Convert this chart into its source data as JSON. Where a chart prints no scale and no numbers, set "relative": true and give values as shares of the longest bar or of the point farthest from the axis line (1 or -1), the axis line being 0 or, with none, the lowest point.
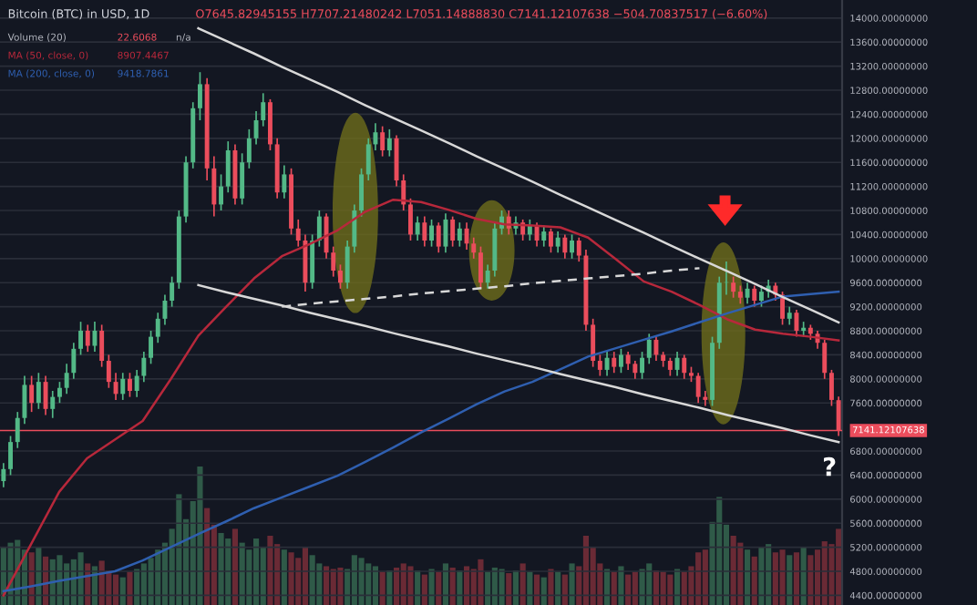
{
  "chart_data": [
    {
      "type": "candlestick",
      "title": "Bitcoin (BTC) in USD, 1D",
      "subtitle": "O7645.82945155 H7707.21480242 L7051.14888830 C7141.12107638 −504.70837517 (−6.60%)",
      "annotations": [
        "Volume (20)",
        "22.6068",
        "n/a",
        "8907.4467",
        "9418.7861",
        "?"
      ],
      "categories": [
        null,
        null,
        null,
        null,
        null,
        null,
        null,
        null,
        null,
        null,
        null,
        null,
        null,
        null,
        null,
        null,
        null,
        null,
        null,
        null,
        null,
        null,
        null,
        null,
        null,
        null,
        null,
        null,
        null,
        null,
        null,
        null,
        null,
        null,
        null,
        null,
        null,
        null,
        null,
        null,
        null,
        null,
        null,
        null,
        null,
        null,
        null,
        null,
        null,
        null,
        null,
        null,
        null,
        null,
        null,
        null,
        null,
        null,
        null,
        null,
        null,
        null,
        null,
        null,
        null,
        null,
        null,
        null,
        null,
        null,
        null,
        null,
        null,
        null,
        null,
        null,
        null,
        null,
        null,
        null,
        null,
        null,
        null,
        null,
        null,
        null,
        null,
        null,
        null,
        null,
        null,
        null,
        null,
        null,
        null,
        null,
        null,
        null,
        null,
        null,
        null,
        null,
        null,
        null,
        null,
        null,
        null,
        null,
        null,
        null,
        null,
        null,
        null,
        null,
        null,
        null,
        null,
        null,
        null,
        null
      ],
      "ohlc": [
        [
          6300,
          6600,
          6200,
          6500
        ],
        [
          6500,
          7050,
          6400,
          6950
        ],
        [
          6950,
          7450,
          6850,
          7350
        ],
        [
          7350,
          8050,
          7250,
          7900
        ],
        [
          7900,
          8050,
          7450,
          7600
        ],
        [
          7600,
          8100,
          7500,
          7950
        ],
        [
          7950,
          8050,
          7400,
          7500
        ],
        [
          7500,
          7800,
          7350,
          7700
        ],
        [
          7700,
          7950,
          7600,
          7850
        ],
        [
          7850,
          8250,
          7750,
          8100
        ],
        [
          8100,
          8600,
          8000,
          8500
        ],
        [
          8500,
          8950,
          8400,
          8800
        ],
        [
          8800,
          8900,
          8450,
          8550
        ],
        [
          8550,
          8950,
          8450,
          8800
        ],
        [
          8800,
          8900,
          8200,
          8300
        ],
        [
          8300,
          8400,
          7850,
          7950
        ],
        [
          7950,
          8100,
          7650,
          7750
        ],
        [
          7750,
          8100,
          7650,
          8000
        ],
        [
          8000,
          8100,
          7700,
          7800
        ],
        [
          7800,
          8150,
          7700,
          8050
        ],
        [
          8050,
          8450,
          7950,
          8350
        ],
        [
          8350,
          8800,
          8250,
          8700
        ],
        [
          8700,
          9100,
          8600,
          9000
        ],
        [
          9000,
          9400,
          8900,
          9300
        ],
        [
          9300,
          9700,
          9200,
          9600
        ],
        [
          9600,
          10800,
          9500,
          10700
        ],
        [
          10700,
          11700,
          10600,
          11600
        ],
        [
          11600,
          12600,
          11500,
          12500
        ],
        [
          12500,
          13100,
          12300,
          12900
        ],
        [
          12900,
          13000,
          11300,
          11500
        ],
        [
          11500,
          11700,
          10700,
          10900
        ],
        [
          10900,
          11400,
          10800,
          11200
        ],
        [
          11200,
          11950,
          11100,
          11800
        ],
        [
          11800,
          11900,
          10900,
          11000
        ],
        [
          11000,
          11750,
          10900,
          11600
        ],
        [
          11600,
          12150,
          11500,
          12000
        ],
        [
          12000,
          12450,
          11900,
          12300
        ],
        [
          12300,
          12750,
          12200,
          12600
        ],
        [
          12600,
          12650,
          11800,
          11900
        ],
        [
          11900,
          12000,
          11000,
          11100
        ],
        [
          11100,
          11550,
          11000,
          11400
        ],
        [
          11400,
          11500,
          10400,
          10500
        ],
        [
          10500,
          10650,
          10200,
          10300
        ],
        [
          10300,
          10400,
          9450,
          9600
        ],
        [
          9600,
          10400,
          9500,
          10300
        ],
        [
          10300,
          10800,
          10200,
          10700
        ],
        [
          10700,
          10750,
          10000,
          10100
        ],
        [
          10100,
          10200,
          9700,
          9800
        ],
        [
          9800,
          9900,
          9500,
          9600
        ],
        [
          9600,
          10300,
          9500,
          10200
        ],
        [
          10200,
          10900,
          10100,
          10800
        ],
        [
          10800,
          11500,
          10700,
          11400
        ],
        [
          11400,
          12000,
          11300,
          11900
        ],
        [
          11900,
          12250,
          11800,
          12100
        ],
        [
          12100,
          12200,
          11700,
          11800
        ],
        [
          11800,
          12150,
          11700,
          12000
        ],
        [
          12000,
          12050,
          11200,
          11300
        ],
        [
          11300,
          11400,
          10800,
          10900
        ],
        [
          10900,
          11000,
          10300,
          10400
        ],
        [
          10400,
          10700,
          10300,
          10600
        ],
        [
          10600,
          10700,
          10200,
          10300
        ],
        [
          10300,
          10650,
          10200,
          10550
        ],
        [
          10550,
          10600,
          10100,
          10200
        ],
        [
          10200,
          10750,
          10100,
          10650
        ],
        [
          10650,
          10700,
          10200,
          10300
        ],
        [
          10300,
          10600,
          10200,
          10500
        ],
        [
          10500,
          10600,
          10150,
          10250
        ],
        [
          10250,
          10350,
          10000,
          10100
        ],
        [
          10100,
          10200,
          9500,
          9600
        ],
        [
          9600,
          9900,
          9500,
          9800
        ],
        [
          9800,
          10600,
          9700,
          10500
        ],
        [
          10500,
          10800,
          10400,
          10700
        ],
        [
          10700,
          10800,
          10400,
          10500
        ],
        [
          10500,
          10700,
          10400,
          10600
        ],
        [
          10600,
          10650,
          10300,
          10400
        ],
        [
          10400,
          10650,
          10300,
          10550
        ],
        [
          10550,
          10600,
          10200,
          10300
        ],
        [
          10300,
          10550,
          10200,
          10450
        ],
        [
          10450,
          10500,
          10100,
          10200
        ],
        [
          10200,
          10450,
          10100,
          10350
        ],
        [
          10350,
          10400,
          10000,
          10100
        ],
        [
          10100,
          10400,
          10000,
          10300
        ],
        [
          10300,
          10350,
          9950,
          10050
        ],
        [
          10050,
          10150,
          8800,
          8900
        ],
        [
          8900,
          9000,
          8200,
          8300
        ],
        [
          8300,
          8400,
          8050,
          8150
        ],
        [
          8150,
          8450,
          8050,
          8350
        ],
        [
          8350,
          8450,
          8100,
          8200
        ],
        [
          8200,
          8500,
          8100,
          8400
        ],
        [
          8400,
          8450,
          8150,
          8250
        ],
        [
          8250,
          8300,
          8000,
          8100
        ],
        [
          8100,
          8450,
          8000,
          8350
        ],
        [
          8350,
          8750,
          8250,
          8650
        ],
        [
          8650,
          8700,
          8300,
          8400
        ],
        [
          8400,
          8450,
          8200,
          8300
        ],
        [
          8300,
          8350,
          8050,
          8150
        ],
        [
          8150,
          8450,
          8050,
          8350
        ],
        [
          8350,
          8400,
          8000,
          8100
        ],
        [
          8100,
          8200,
          7950,
          8050
        ],
        [
          8050,
          8100,
          7600,
          7700
        ],
        [
          7700,
          7800,
          7550,
          7650
        ],
        [
          7650,
          8700,
          7550,
          8600
        ],
        [
          8600,
          9700,
          8500,
          9600
        ],
        [
          9600,
          9950,
          9400,
          9600
        ],
        [
          9600,
          9700,
          9350,
          9450
        ],
        [
          9450,
          9550,
          9250,
          9350
        ],
        [
          9350,
          9600,
          9250,
          9500
        ],
        [
          9500,
          9550,
          9200,
          9300
        ],
        [
          9300,
          9550,
          9200,
          9450
        ],
        [
          9450,
          9650,
          9350,
          9550
        ],
        [
          9550,
          9600,
          9300,
          9400
        ],
        [
          9400,
          9450,
          8900,
          9000
        ],
        [
          9000,
          9200,
          8900,
          9100
        ],
        [
          9100,
          9150,
          8700,
          8800
        ],
        [
          8800,
          8950,
          8700,
          8850
        ],
        [
          8850,
          8900,
          8650,
          8750
        ],
        [
          8750,
          8800,
          8500,
          8600
        ],
        [
          8600,
          8650,
          8000,
          8100
        ],
        [
          8100,
          8150,
          7550,
          7650
        ],
        [
          7645.82945155,
          7707.21480242,
          7051.1488883,
          7141.12107638
        ]
      ],
      "colors": [
        "#53b987",
        "#53b987",
        "#53b987",
        "#53b987",
        "#eb4d5c",
        "#53b987",
        "#eb4d5c",
        "#53b987",
        "#53b987",
        "#53b987",
        "#53b987",
        "#53b987",
        "#eb4d5c",
        "#53b987",
        "#eb4d5c",
        "#eb4d5c",
        "#eb4d5c",
        "#53b987",
        "#eb4d5c",
        "#53b987",
        "#53b987",
        "#53b987",
        "#53b987",
        "#53b987",
        "#53b987",
        "#53b987",
        "#53b987",
        "#53b987",
        "#53b987",
        "#eb4d5c",
        "#eb4d5c",
        "#53b987",
        "#53b987",
        "#eb4d5c",
        "#53b987",
        "#53b987",
        "#53b987",
        "#53b987",
        "#eb4d5c",
        "#eb4d5c",
        "#53b987",
        "#eb4d5c",
        "#eb4d5c",
        "#eb4d5c",
        "#53b987",
        "#53b987",
        "#eb4d5c",
        "#eb4d5c",
        "#eb4d5c",
        "#53b987",
        "#53b987",
        "#53b987",
        "#53b987",
        "#53b987",
        "#eb4d5c",
        "#53b987",
        "#eb4d5c",
        "#eb4d5c",
        "#eb4d5c",
        "#53b987",
        "#eb4d5c",
        "#53b987",
        "#eb4d5c",
        "#53b987",
        "#eb4d5c",
        "#53b987",
        "#eb4d5c",
        "#eb4d5c",
        "#eb4d5c",
        "#53b987",
        "#53b987",
        "#53b987",
        "#eb4d5c",
        "#53b987",
        "#eb4d5c",
        "#53b987",
        "#eb4d5c",
        "#53b987",
        "#eb4d5c",
        "#53b987",
        "#eb4d5c",
        "#53b987",
        "#eb4d5c",
        "#eb4d5c",
        "#eb4d5c",
        "#eb4d5c",
        "#53b987",
        "#eb4d5c",
        "#53b987",
        "#eb4d5c",
        "#eb4d5c",
        "#53b987",
        "#53b987",
        "#eb4d5c",
        "#eb4d5c",
        "#eb4d5c",
        "#53b987",
        "#eb4d5c",
        "#eb4d5c",
        "#eb4d5c",
        "#eb4d5c",
        "#53b987",
        "#53b987",
        "#53b987",
        "#eb4d5c",
        "#eb4d5c",
        "#53b987",
        "#eb4d5c",
        "#53b987",
        "#53b987",
        "#eb4d5c",
        "#eb4d5c",
        "#53b987",
        "#eb4d5c",
        "#53b987",
        "#eb4d5c",
        "#eb4d5c",
        "#eb4d5c",
        "#eb4d5c",
        "#eb4d5c"
      ],
      "ref_lines": [
        {
          "axis": "y",
          "value": 7141.12107638,
          "label": "7141.12107638",
          "color": "#eb4d5c"
        }
      ],
      "ylim": [
        4240,
        14300
      ],
      "yticks": [
        {
          "value": 4400,
          "label": "4400.00000000"
        },
        {
          "value": 4800,
          "label": "4800.00000000"
        },
        {
          "value": 5200,
          "label": "5200.00000000"
        },
        {
          "value": 5600,
          "label": "5600.00000000"
        },
        {
          "value": 6000,
          "label": "6000.00000000"
        },
        {
          "value": 6400,
          "label": "6400.00000000"
        },
        {
          "value": 6800,
          "label": "6800.00000000"
        },
        {
          "value": 7600,
          "label": "7600.00000000"
        },
        {
          "value": 8000,
          "label": "8000.00000000"
        },
        {
          "value": 8400,
          "label": "8400.00000000"
        },
        {
          "value": 8800,
          "label": "8800.00000000"
        },
        {
          "value": 9200,
          "label": "9200.00000000"
        },
        {
          "value": 9600,
          "label": "9600.00000000"
        },
        {
          "value": 10000,
          "label": "10000.00000000"
        },
        {
          "value": 10400,
          "label": "10400.00000000"
        },
        {
          "value": 10800,
          "label": "10800.00000000"
        },
        {
          "value": 11200,
          "label": "11200.00000000"
        },
        {
          "value": 11600,
          "label": "11600.00000000"
        },
        {
          "value": 12000,
          "label": "12000.00000000"
        },
        {
          "value": 12400,
          "label": "12400.00000000"
        },
        {
          "value": 12800,
          "label": "12800.00000000"
        },
        {
          "value": 13200,
          "label": "13200.00000000"
        },
        {
          "value": 13600,
          "label": "13600.00000000"
        },
        {
          "value": 14000,
          "label": "14000.00000000"
        }
      ],
      "tick_labels": "y",
      "grid": "y"
    },
    {
      "type": "bar",
      "relative": true,
      "tick_labels": false,
      "categories": [
        null,
        null,
        null,
        null,
        null,
        null,
        null,
        null,
        null,
        null,
        null,
        null,
        null,
        null,
        null,
        null,
        null,
        null,
        null,
        null,
        null,
        null,
        null,
        null,
        null,
        null,
        null,
        null,
        null,
        null,
        null,
        null,
        null,
        null,
        null,
        null,
        null,
        null,
        null,
        null,
        null,
        null,
        null,
        null,
        null,
        null,
        null,
        null,
        null,
        null,
        null,
        null,
        null,
        null,
        null,
        null,
        null,
        null,
        null,
        null,
        null,
        null,
        null,
        null,
        null,
        null,
        null,
        null,
        null,
        null,
        null,
        null,
        null,
        null,
        null,
        null,
        null,
        null,
        null,
        null,
        null,
        null,
        null,
        null,
        null,
        null,
        null,
        null,
        null,
        null,
        null,
        null,
        null,
        null,
        null,
        null,
        null,
        null,
        null,
        null,
        null,
        null,
        null,
        null,
        null,
        null,
        null,
        null,
        null,
        null,
        null,
        null,
        null,
        null,
        null,
        null,
        null,
        null,
        null,
        null
      ],
      "values": [
        0.42,
        0.45,
        0.47,
        0.4,
        0.38,
        0.42,
        0.35,
        0.33,
        0.36,
        0.3,
        0.33,
        0.38,
        0.3,
        0.28,
        0.32,
        0.25,
        0.22,
        0.2,
        0.24,
        0.26,
        0.3,
        0.34,
        0.4,
        0.45,
        0.55,
        0.8,
        0.62,
        0.75,
        1.0,
        0.7,
        0.58,
        0.52,
        0.48,
        0.55,
        0.45,
        0.4,
        0.48,
        0.42,
        0.5,
        0.44,
        0.4,
        0.38,
        0.34,
        0.42,
        0.36,
        0.3,
        0.28,
        0.26,
        0.27,
        0.26,
        0.36,
        0.34,
        0.3,
        0.28,
        0.24,
        0.25,
        0.27,
        0.3,
        0.28,
        0.25,
        0.22,
        0.26,
        0.24,
        0.3,
        0.27,
        0.25,
        0.28,
        0.26,
        0.33,
        0.24,
        0.27,
        0.26,
        0.23,
        0.25,
        0.3,
        0.24,
        0.22,
        0.2,
        0.26,
        0.24,
        0.22,
        0.3,
        0.28,
        0.5,
        0.42,
        0.3,
        0.26,
        0.24,
        0.28,
        0.22,
        0.24,
        0.26,
        0.3,
        0.25,
        0.24,
        0.22,
        0.26,
        0.24,
        0.28,
        0.38,
        0.4,
        0.6,
        0.78,
        0.58,
        0.5,
        0.45,
        0.4,
        0.35,
        0.42,
        0.44,
        0.38,
        0.4,
        0.36,
        0.38,
        0.42,
        0.36,
        0.4,
        0.46,
        0.44,
        0.55
      ],
      "colors": [
        "#2f5a48",
        "#2f5a48",
        "#2f5a48",
        "#2f5a48",
        "#6a2a35",
        "#2f5a48",
        "#6a2a35",
        "#2f5a48",
        "#2f5a48",
        "#2f5a48",
        "#2f5a48",
        "#2f5a48",
        "#6a2a35",
        "#2f5a48",
        "#6a2a35",
        "#6a2a35",
        "#6a2a35",
        "#2f5a48",
        "#6a2a35",
        "#2f5a48",
        "#2f5a48",
        "#2f5a48",
        "#2f5a48",
        "#2f5a48",
        "#2f5a48",
        "#2f5a48",
        "#2f5a48",
        "#2f5a48",
        "#2f5a48",
        "#6a2a35",
        "#6a2a35",
        "#2f5a48",
        "#2f5a48",
        "#6a2a35",
        "#2f5a48",
        "#2f5a48",
        "#2f5a48",
        "#2f5a48",
        "#6a2a35",
        "#6a2a35",
        "#2f5a48",
        "#6a2a35",
        "#6a2a35",
        "#6a2a35",
        "#2f5a48",
        "#2f5a48",
        "#6a2a35",
        "#6a2a35",
        "#6a2a35",
        "#2f5a48",
        "#2f5a48",
        "#2f5a48",
        "#2f5a48",
        "#2f5a48",
        "#6a2a35",
        "#2f5a48",
        "#6a2a35",
        "#6a2a35",
        "#6a2a35",
        "#2f5a48",
        "#6a2a35",
        "#2f5a48",
        "#6a2a35",
        "#2f5a48",
        "#6a2a35",
        "#2f5a48",
        "#6a2a35",
        "#6a2a35",
        "#6a2a35",
        "#2f5a48",
        "#2f5a48",
        "#2f5a48",
        "#6a2a35",
        "#2f5a48",
        "#6a2a35",
        "#2f5a48",
        "#6a2a35",
        "#2f5a48",
        "#6a2a35",
        "#2f5a48",
        "#6a2a35",
        "#2f5a48",
        "#6a2a35",
        "#6a2a35",
        "#6a2a35",
        "#6a2a35",
        "#2f5a48",
        "#6a2a35",
        "#2f5a48",
        "#6a2a35",
        "#6a2a35",
        "#2f5a48",
        "#2f5a48",
        "#6a2a35",
        "#6a2a35",
        "#6a2a35",
        "#2f5a48",
        "#6a2a35",
        "#6a2a35",
        "#6a2a35",
        "#6a2a35",
        "#2f5a48",
        "#2f5a48",
        "#2f5a48",
        "#6a2a35",
        "#6a2a35",
        "#2f5a48",
        "#6a2a35",
        "#2f5a48",
        "#2f5a48",
        "#6a2a35",
        "#6a2a35",
        "#2f5a48",
        "#6a2a35",
        "#2f5a48",
        "#6a2a35",
        "#6a2a35",
        "#6a2a35",
        "#6a2a35",
        "#6a2a35"
      ]
    },
    {
      "type": "line",
      "tick_labels": false,
      "ylim": [
        4240,
        14300
      ],
      "categories": [
        null,
        null,
        null,
        null,
        null,
        null,
        null,
        null,
        null,
        null,
        null,
        null,
        null,
        null,
        null,
        null,
        null,
        null,
        null,
        null,
        null,
        null,
        null,
        null,
        null,
        null,
        null,
        null,
        null,
        null,
        null
      ],
      "series": [
        {
          "name": "MA (50, close, 0)",
          "color": "#b7283b",
          "values": [
            4400,
            5260,
            6120,
            6680,
            6990,
            7300,
            7990,
            8720,
            9200,
            9670,
            10040,
            10240,
            10470,
            10780,
            10980,
            10940,
            10810,
            10660,
            10570,
            10550,
            10520,
            10350,
            9990,
            9620,
            9450,
            9230,
            8990,
            8820,
            8750,
            8700,
            8640
          ]
        },
        {
          "name": "MA (200, close, 0)",
          "color": "#2f5fb0",
          "values": [
            4470,
            4550,
            4640,
            4720,
            4800,
            4980,
            5200,
            5420,
            5630,
            5850,
            6030,
            6210,
            6390,
            6620,
            6860,
            7110,
            7340,
            7580,
            7790,
            7950,
            8160,
            8370,
            8510,
            8650,
            8790,
            8940,
            9090,
            9230,
            9370,
            9410,
            9450
          ]
        },
        {
          "color": "#d8d8d8",
          "values": [
            null,
            null,
            null,
            null,
            null,
            null,
            null,
            13830,
            13620,
            13410,
            13190,
            12980,
            12770,
            12550,
            12340,
            12130,
            11920,
            11700,
            11490,
            11280,
            11060,
            10850,
            10640,
            10430,
            10210,
            10000,
            9790,
            9580,
            9360,
            9150,
            8940
          ]
        },
        {
          "color": "#d8d8d8",
          "values": [
            null,
            null,
            null,
            null,
            null,
            null,
            null,
            9560,
            9440,
            9330,
            9220,
            9100,
            8990,
            8880,
            8760,
            8650,
            8540,
            8420,
            8310,
            8200,
            8080,
            7970,
            7860,
            7740,
            7630,
            7520,
            7400,
            7290,
            7180,
            7060,
            6950
          ]
        },
        {
          "color": "#d8d8d8",
          "line_style": "dashed",
          "values": [
            null,
            null,
            null,
            null,
            null,
            null,
            null,
            null,
            null,
            null,
            9200,
            9250,
            9290,
            9330,
            9370,
            9420,
            9460,
            9500,
            9540,
            9590,
            9630,
            9670,
            9710,
            9750,
            9800,
            9840,
            null,
            null,
            null,
            null,
            null
          ]
        }
      ]
    }
  ]
}
